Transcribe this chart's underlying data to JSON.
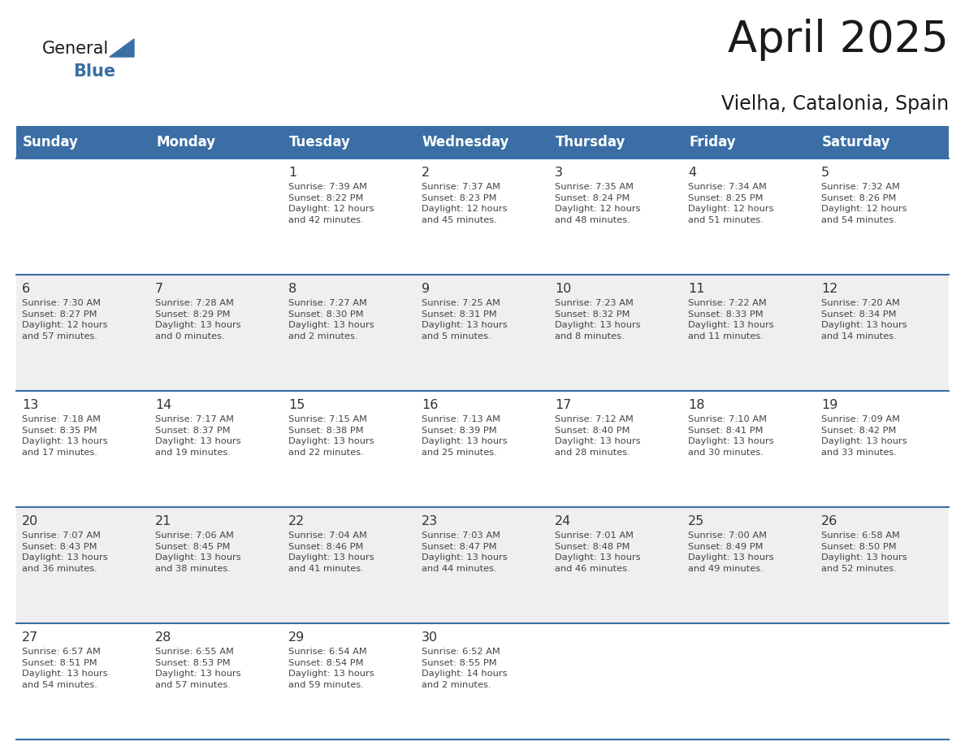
{
  "title": "April 2025",
  "subtitle": "Vielha, Catalonia, Spain",
  "days_of_week": [
    "Sunday",
    "Monday",
    "Tuesday",
    "Wednesday",
    "Thursday",
    "Friday",
    "Saturday"
  ],
  "header_bg": "#3A6EA5",
  "header_text": "#FFFFFF",
  "cell_bg_white": "#FFFFFF",
  "cell_bg_gray": "#EFEFEF",
  "row_separator": "#3A6EA5",
  "text_color": "#444444",
  "day_num_color": "#333333",
  "title_color": "#1a1a1a",
  "subtitle_color": "#1a1a1a",
  "logo_general_color": "#1a1a1a",
  "logo_blue_color": "#3A6EA5",
  "calendar_data": [
    [
      "",
      "",
      "1\nSunrise: 7:39 AM\nSunset: 8:22 PM\nDaylight: 12 hours\nand 42 minutes.",
      "2\nSunrise: 7:37 AM\nSunset: 8:23 PM\nDaylight: 12 hours\nand 45 minutes.",
      "3\nSunrise: 7:35 AM\nSunset: 8:24 PM\nDaylight: 12 hours\nand 48 minutes.",
      "4\nSunrise: 7:34 AM\nSunset: 8:25 PM\nDaylight: 12 hours\nand 51 minutes.",
      "5\nSunrise: 7:32 AM\nSunset: 8:26 PM\nDaylight: 12 hours\nand 54 minutes."
    ],
    [
      "6\nSunrise: 7:30 AM\nSunset: 8:27 PM\nDaylight: 12 hours\nand 57 minutes.",
      "7\nSunrise: 7:28 AM\nSunset: 8:29 PM\nDaylight: 13 hours\nand 0 minutes.",
      "8\nSunrise: 7:27 AM\nSunset: 8:30 PM\nDaylight: 13 hours\nand 2 minutes.",
      "9\nSunrise: 7:25 AM\nSunset: 8:31 PM\nDaylight: 13 hours\nand 5 minutes.",
      "10\nSunrise: 7:23 AM\nSunset: 8:32 PM\nDaylight: 13 hours\nand 8 minutes.",
      "11\nSunrise: 7:22 AM\nSunset: 8:33 PM\nDaylight: 13 hours\nand 11 minutes.",
      "12\nSunrise: 7:20 AM\nSunset: 8:34 PM\nDaylight: 13 hours\nand 14 minutes."
    ],
    [
      "13\nSunrise: 7:18 AM\nSunset: 8:35 PM\nDaylight: 13 hours\nand 17 minutes.",
      "14\nSunrise: 7:17 AM\nSunset: 8:37 PM\nDaylight: 13 hours\nand 19 minutes.",
      "15\nSunrise: 7:15 AM\nSunset: 8:38 PM\nDaylight: 13 hours\nand 22 minutes.",
      "16\nSunrise: 7:13 AM\nSunset: 8:39 PM\nDaylight: 13 hours\nand 25 minutes.",
      "17\nSunrise: 7:12 AM\nSunset: 8:40 PM\nDaylight: 13 hours\nand 28 minutes.",
      "18\nSunrise: 7:10 AM\nSunset: 8:41 PM\nDaylight: 13 hours\nand 30 minutes.",
      "19\nSunrise: 7:09 AM\nSunset: 8:42 PM\nDaylight: 13 hours\nand 33 minutes."
    ],
    [
      "20\nSunrise: 7:07 AM\nSunset: 8:43 PM\nDaylight: 13 hours\nand 36 minutes.",
      "21\nSunrise: 7:06 AM\nSunset: 8:45 PM\nDaylight: 13 hours\nand 38 minutes.",
      "22\nSunrise: 7:04 AM\nSunset: 8:46 PM\nDaylight: 13 hours\nand 41 minutes.",
      "23\nSunrise: 7:03 AM\nSunset: 8:47 PM\nDaylight: 13 hours\nand 44 minutes.",
      "24\nSunrise: 7:01 AM\nSunset: 8:48 PM\nDaylight: 13 hours\nand 46 minutes.",
      "25\nSunrise: 7:00 AM\nSunset: 8:49 PM\nDaylight: 13 hours\nand 49 minutes.",
      "26\nSunrise: 6:58 AM\nSunset: 8:50 PM\nDaylight: 13 hours\nand 52 minutes."
    ],
    [
      "27\nSunrise: 6:57 AM\nSunset: 8:51 PM\nDaylight: 13 hours\nand 54 minutes.",
      "28\nSunrise: 6:55 AM\nSunset: 8:53 PM\nDaylight: 13 hours\nand 57 minutes.",
      "29\nSunrise: 6:54 AM\nSunset: 8:54 PM\nDaylight: 13 hours\nand 59 minutes.",
      "30\nSunrise: 6:52 AM\nSunset: 8:55 PM\nDaylight: 14 hours\nand 2 minutes.",
      "",
      "",
      ""
    ]
  ]
}
